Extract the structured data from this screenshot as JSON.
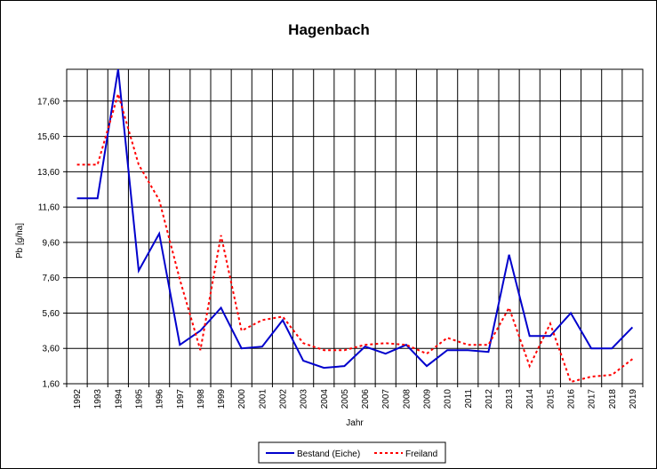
{
  "chart_data": {
    "type": "line",
    "title": "Hagenbach",
    "xlabel": "Jahr",
    "ylabel": "Pb [g/ha]",
    "ylim": [
      1.6,
      19.4
    ],
    "yticks": [
      "1,60",
      "3,60",
      "5,60",
      "7,60",
      "9,60",
      "11,60",
      "13,60",
      "15,60",
      "17,60"
    ],
    "grid": true,
    "legend_position": "bottom-center",
    "x": [
      "1992",
      "1993",
      "1994",
      "1995",
      "1996",
      "1997",
      "1998",
      "1999",
      "2000",
      "2001",
      "2002",
      "2003",
      "2004",
      "2005",
      "2006",
      "2007",
      "2008",
      "2009",
      "2010",
      "2011",
      "2012",
      "2013",
      "2014",
      "2015",
      "2016",
      "2017",
      "2018",
      "2019"
    ],
    "series": [
      {
        "name": "Bestand (Eiche)",
        "color": "#0000cc",
        "style": "solid",
        "values": [
          12.1,
          12.1,
          19.4,
          8.0,
          10.1,
          3.8,
          4.6,
          5.9,
          3.6,
          3.7,
          5.2,
          2.9,
          2.5,
          2.6,
          3.7,
          3.3,
          3.8,
          2.6,
          3.5,
          3.5,
          3.4,
          8.9,
          4.3,
          4.3,
          5.6,
          3.6,
          3.6,
          4.8
        ]
      },
      {
        "name": "Freiland",
        "color": "#ff0000",
        "style": "dotted",
        "values": [
          14.0,
          14.0,
          18.0,
          14.0,
          12.0,
          7.5,
          3.5,
          10.0,
          4.6,
          5.2,
          5.4,
          3.9,
          3.5,
          3.5,
          3.8,
          3.9,
          3.8,
          3.3,
          4.2,
          3.8,
          3.8,
          5.9,
          2.6,
          5.0,
          1.7,
          2.0,
          2.1,
          3.0
        ]
      }
    ]
  }
}
